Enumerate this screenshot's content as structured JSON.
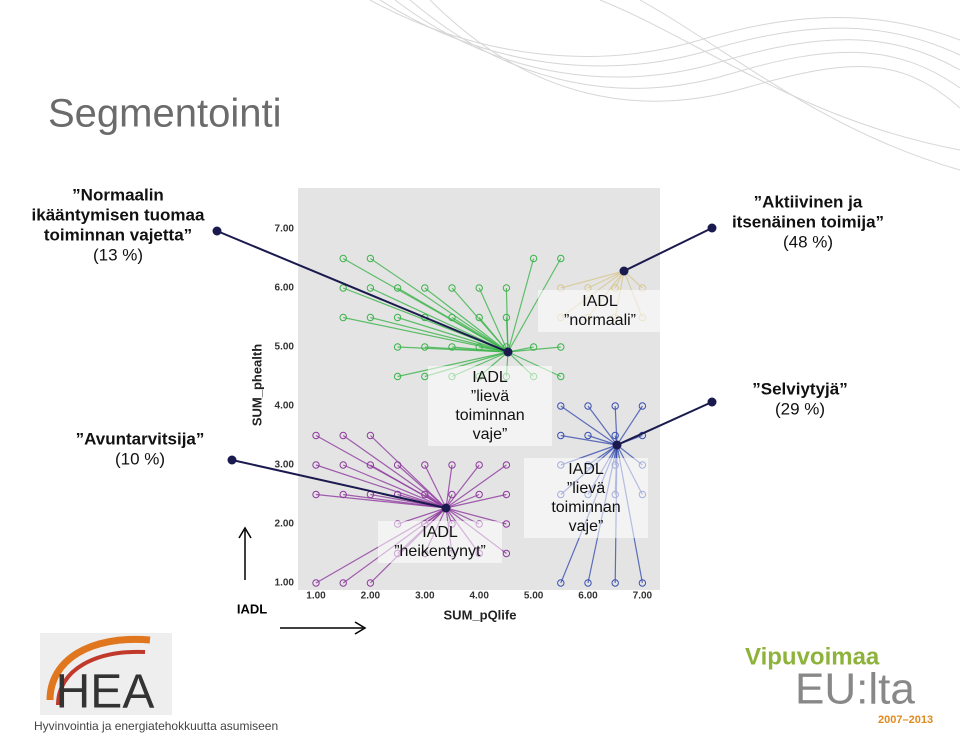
{
  "title": "Segmentointi",
  "callouts": [
    {
      "lines": [
        "”Normaalin",
        "ikääntymisen tuomaa",
        "toiminnan vajetta”",
        "(13 %)"
      ]
    },
    {
      "lines": [
        "”Aktiivinen ja",
        "itsenäinen toimija”",
        "(48 %)"
      ]
    },
    {
      "lines": [
        "”Avuntarvitsija”",
        "(10 %)"
      ]
    },
    {
      "lines": [
        "”Selviytyjä”",
        "(29 %)"
      ]
    }
  ],
  "plot": {
    "y_axis_label": "SUM_phealth",
    "x_axis_label": "SUM_pQlife",
    "yticks": [
      "7.00",
      "6.00",
      "5.00",
      "4.00",
      "3.00",
      "2.00",
      "1.00"
    ],
    "xticks": [
      "1.00",
      "2.00",
      "3.00",
      "4.00",
      "5.00",
      "6.00",
      "7.00"
    ],
    "cluster_labels": [
      {
        "lines": [
          "IADL",
          "”normaali”"
        ]
      },
      {
        "lines": [
          "IADL",
          "”lievä",
          "toiminnan",
          "vaje”"
        ]
      },
      {
        "lines": [
          "IADL",
          "”lievä",
          "toiminnan",
          "vaje”"
        ]
      },
      {
        "lines": [
          "IADL",
          "”heikentynyt”"
        ]
      }
    ]
  },
  "iadl_arrow_label": "IADL",
  "footer": {
    "logo_left": "HEA",
    "logo_left_caption": "Hyvinvointia ja energiatehokkuutta asumiseen",
    "logo_right_top": "Vipuvoimaa",
    "logo_right_main": "EU:lta",
    "logo_right_years": "2007–2013"
  }
}
